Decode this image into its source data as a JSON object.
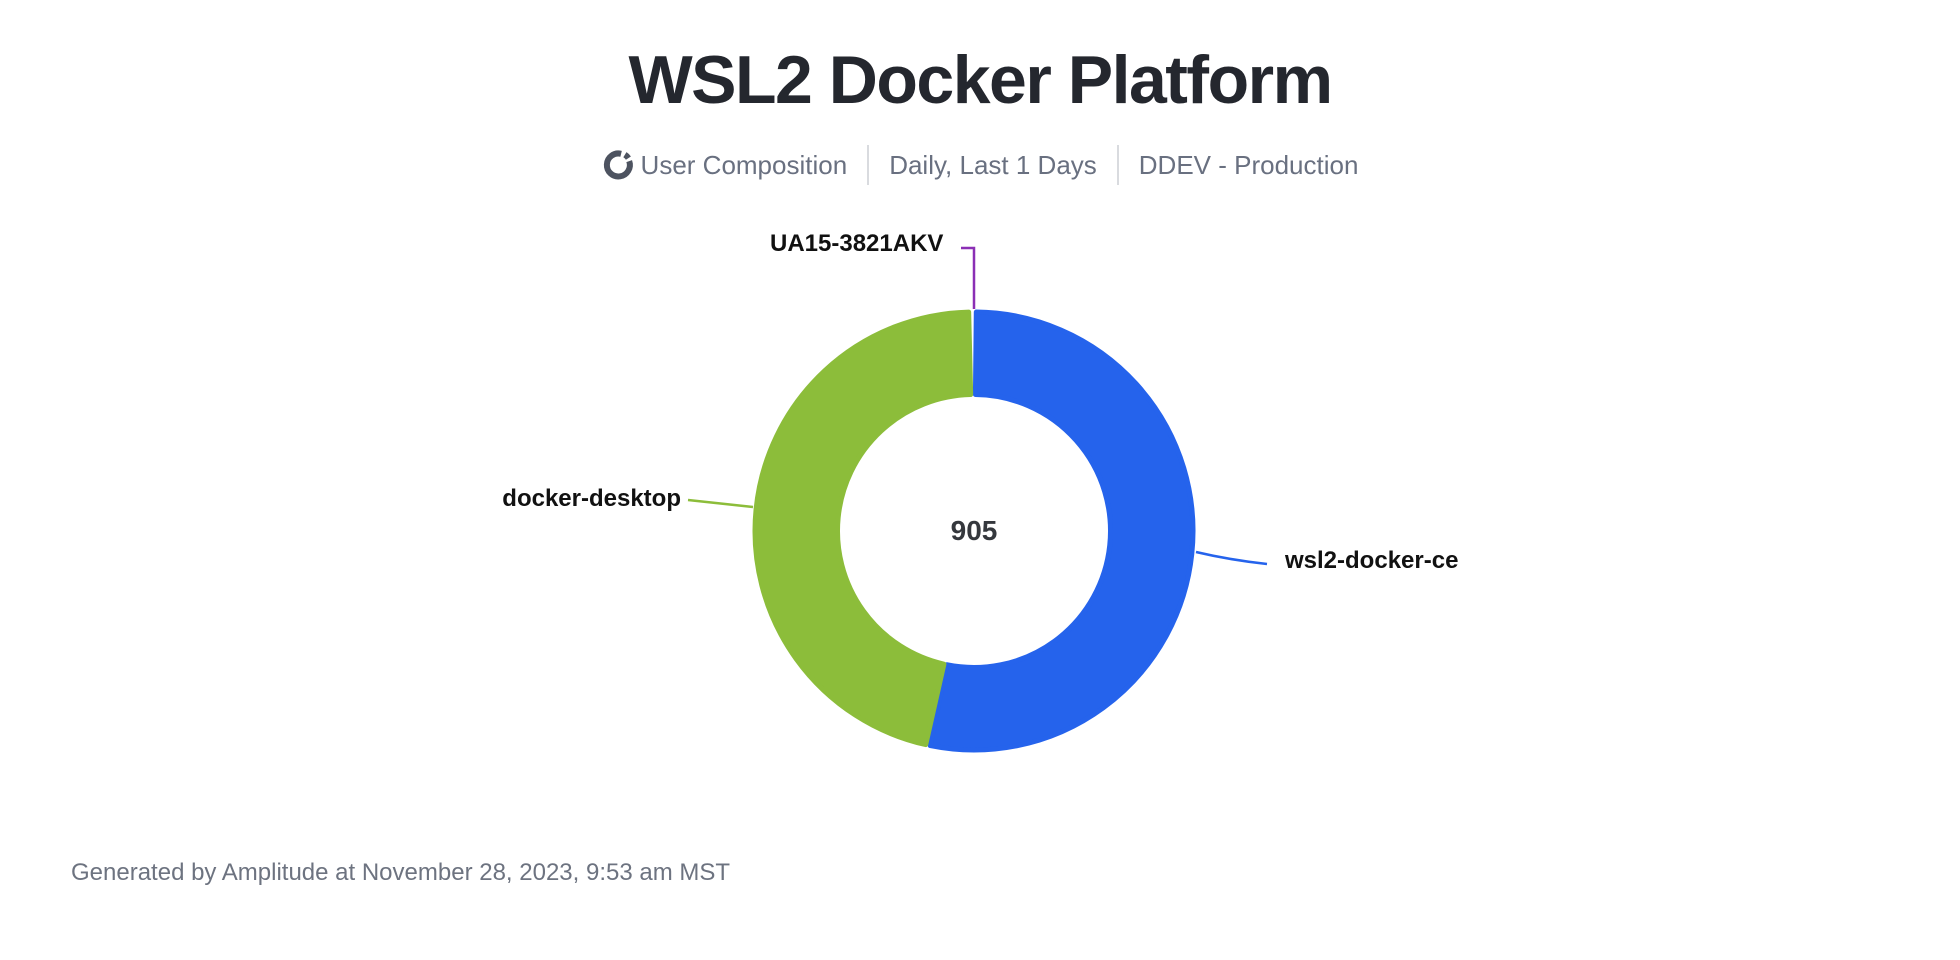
{
  "page": {
    "title": "WSL2 Docker Platform",
    "footer": "Generated by Amplitude at November 28, 2023, 9:53 am MST"
  },
  "subtitle": {
    "icon": "donut-chart-icon",
    "items": [
      "User Composition",
      "Daily, Last 1 Days",
      "DDEV - Production"
    ],
    "text_color": "#697080",
    "divider_color": "#d9dbdf",
    "icon_color": "#4d5360"
  },
  "chart_data": {
    "type": "pie",
    "donut": true,
    "title": "WSL2 Docker Platform",
    "displayed_center_total": "905",
    "total": 905,
    "series": [
      {
        "name": "wsl2-docker-ce",
        "value": 483,
        "color": "#2563ec"
      },
      {
        "name": "docker-desktop",
        "value": 420,
        "color": "#8cbd3a"
      },
      {
        "name": "UA15-3821AKV",
        "value": 2,
        "color": "#8b2fb5"
      }
    ],
    "legend_position": "callout-labels",
    "labels_shown": [
      "UA15-3821AKV",
      "docker-desktop",
      "wsl2-docker-ce"
    ],
    "pad_angle_deg": 1.2,
    "start_angle_deg": 0,
    "direction": "clockwise"
  }
}
